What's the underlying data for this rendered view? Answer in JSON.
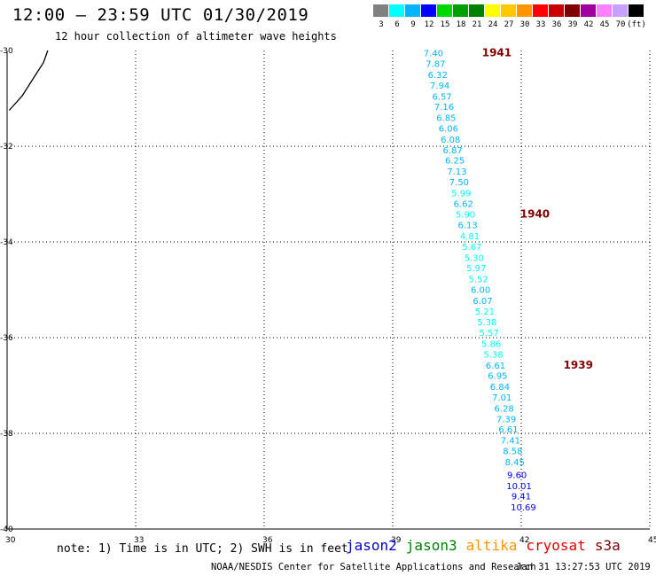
{
  "header": {
    "title": "12:00 – 23:59 UTC 01/30/2019",
    "subtitle": "12 hour collection of altimeter wave heights"
  },
  "color_scale": {
    "colors": [
      "#808080",
      "#00ffff",
      "#00b4ff",
      "#0000ff",
      "#00d800",
      "#00a000",
      "#008000",
      "#ffff00",
      "#ffc800",
      "#ff9600",
      "#ff0000",
      "#c80000",
      "#800000",
      "#a000a0",
      "#ff80ff",
      "#c8a0ff",
      "#000000"
    ],
    "labels": [
      "3",
      "6",
      "9",
      "12",
      "15",
      "18",
      "21",
      "24",
      "27",
      "30",
      "33",
      "36",
      "39",
      "42",
      "45",
      "70",
      "(ft)"
    ]
  },
  "chart_data": {
    "type": "scatter",
    "title": "12:00 – 23:59 UTC 01/30/2019",
    "xlim": [
      30,
      45
    ],
    "ylim": [
      -40,
      -30
    ],
    "x_ticks": [
      30,
      33,
      36,
      39,
      42,
      45
    ],
    "y_ticks": [
      -30,
      -32,
      -34,
      -36,
      -38,
      -40
    ],
    "grid": true,
    "coastline": [
      {
        "x": 30.05,
        "y": -31.25
      },
      {
        "x": 30.35,
        "y": -30.95
      },
      {
        "x": 30.6,
        "y": -30.6
      },
      {
        "x": 30.85,
        "y": -30.25
      },
      {
        "x": 30.95,
        "y": -30.0
      }
    ],
    "track": [
      {
        "x": 39.95,
        "y": -30.05,
        "swh": 7.4
      },
      {
        "x": 40.0,
        "y": -30.27,
        "swh": 7.87
      },
      {
        "x": 40.05,
        "y": -30.5,
        "swh": 6.32
      },
      {
        "x": 40.1,
        "y": -30.72,
        "swh": 7.94
      },
      {
        "x": 40.15,
        "y": -30.95,
        "swh": 6.57
      },
      {
        "x": 40.2,
        "y": -31.17,
        "swh": 7.16
      },
      {
        "x": 40.25,
        "y": -31.4,
        "swh": 6.85
      },
      {
        "x": 40.3,
        "y": -31.62,
        "swh": 6.06
      },
      {
        "x": 40.35,
        "y": -31.85,
        "swh": 6.08
      },
      {
        "x": 40.4,
        "y": -32.07,
        "swh": 6.87
      },
      {
        "x": 40.45,
        "y": -32.29,
        "swh": 6.25
      },
      {
        "x": 40.5,
        "y": -32.52,
        "swh": 7.13
      },
      {
        "x": 40.55,
        "y": -32.74,
        "swh": 7.5
      },
      {
        "x": 40.6,
        "y": -32.97,
        "swh": 5.99
      },
      {
        "x": 40.65,
        "y": -33.19,
        "swh": 6.62
      },
      {
        "x": 40.7,
        "y": -33.42,
        "swh": 5.9
      },
      {
        "x": 40.75,
        "y": -33.64,
        "swh": 6.13
      },
      {
        "x": 40.8,
        "y": -33.87,
        "swh": 4.81
      },
      {
        "x": 40.85,
        "y": -34.09,
        "swh": 5.67
      },
      {
        "x": 40.9,
        "y": -34.32,
        "swh": 5.3
      },
      {
        "x": 40.95,
        "y": -34.54,
        "swh": 5.97
      },
      {
        "x": 41.0,
        "y": -34.77,
        "swh": 5.52
      },
      {
        "x": 41.05,
        "y": -34.99,
        "swh": 6.0
      },
      {
        "x": 41.1,
        "y": -35.22,
        "swh": 6.07
      },
      {
        "x": 41.15,
        "y": -35.44,
        "swh": 5.21
      },
      {
        "x": 41.2,
        "y": -35.67,
        "swh": 5.38
      },
      {
        "x": 41.25,
        "y": -35.89,
        "swh": 5.57
      },
      {
        "x": 41.3,
        "y": -36.12,
        "swh": 5.86
      },
      {
        "x": 41.35,
        "y": -36.34,
        "swh": 5.38
      },
      {
        "x": 41.4,
        "y": -36.57,
        "swh": 6.61
      },
      {
        "x": 41.45,
        "y": -36.79,
        "swh": 6.95
      },
      {
        "x": 41.5,
        "y": -37.02,
        "swh": 6.84
      },
      {
        "x": 41.55,
        "y": -37.24,
        "swh": 7.01
      },
      {
        "x": 41.6,
        "y": -37.47,
        "swh": 6.28
      },
      {
        "x": 41.65,
        "y": -37.69,
        "swh": 7.39
      },
      {
        "x": 41.7,
        "y": -37.91,
        "swh": 6.61
      },
      {
        "x": 41.75,
        "y": -38.14,
        "swh": 7.41
      },
      {
        "x": 41.8,
        "y": -38.36,
        "swh": 8.58
      },
      {
        "x": 41.85,
        "y": -38.59,
        "swh": 8.45
      },
      {
        "x": 41.9,
        "y": -38.86,
        "swh": 9.6
      },
      {
        "x": 41.95,
        "y": -39.09,
        "swh": 10.01
      },
      {
        "x": 42.0,
        "y": -39.31,
        "swh": 9.41
      },
      {
        "x": 42.05,
        "y": -39.54,
        "swh": 10.69
      }
    ],
    "time_labels": [
      {
        "text": "1941",
        "x": 41.43,
        "y": -30.05
      },
      {
        "text": "1940",
        "x": 42.32,
        "y": -33.42
      },
      {
        "text": "1939",
        "x": 43.33,
        "y": -36.57
      }
    ]
  },
  "footer": {
    "note": "note: 1) Time is in UTC; 2) SWH is in feet",
    "satellites": [
      {
        "name": "jason2",
        "color": "#0000cc"
      },
      {
        "name": "jason3",
        "color": "#008000"
      },
      {
        "name": "altika",
        "color": "#ff9600"
      },
      {
        "name": "cryosat",
        "color": "#e00000"
      },
      {
        "name": "s3a",
        "color": "#800000"
      }
    ],
    "credit": "NOAA/NESDIS Center for Satellite Applications and Research",
    "timestamp": "Jan 31 13:27:53 UTC 2019"
  }
}
